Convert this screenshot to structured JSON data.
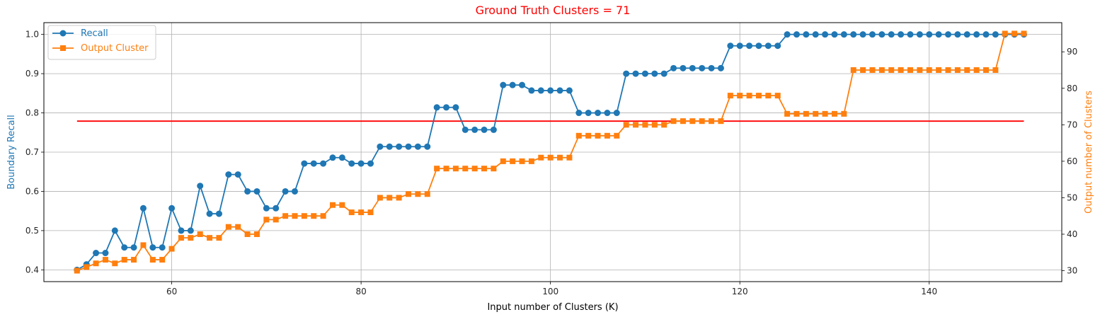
{
  "chart_data": {
    "type": "line",
    "title": "Ground Truth Clusters = 71",
    "title_color": "#ff0000",
    "xlabel": "Input number of Clusters (K)",
    "ylabel_left": "Boundary Recall",
    "ylabel_right": "Output number of Clusters",
    "xlim": [
      46.5,
      154
    ],
    "ylim_left": [
      0.37,
      1.03
    ],
    "ylim_right": [
      27,
      98
    ],
    "xticks": [
      60,
      80,
      100,
      120,
      140
    ],
    "yticks_left": [
      0.4,
      0.5,
      0.6,
      0.7,
      0.8,
      0.9,
      1.0
    ],
    "yticks_right": [
      30,
      40,
      50,
      60,
      70,
      80,
      90
    ],
    "xtick_labels": [
      "60",
      "80",
      "100",
      "120",
      "140"
    ],
    "ytick_left_labels": [
      "0.4",
      "0.5",
      "0.6",
      "0.7",
      "0.8",
      "0.9",
      "1.0"
    ],
    "ytick_right_labels": [
      "30",
      "40",
      "50",
      "60",
      "70",
      "80",
      "90"
    ],
    "grid": true,
    "legend_placement": "top-left",
    "x": [
      50,
      51,
      52,
      53,
      54,
      55,
      56,
      57,
      58,
      59,
      60,
      61,
      62,
      63,
      64,
      65,
      66,
      67,
      68,
      69,
      70,
      71,
      72,
      73,
      74,
      75,
      76,
      77,
      78,
      79,
      80,
      81,
      82,
      83,
      84,
      85,
      86,
      87,
      88,
      89,
      90,
      91,
      92,
      93,
      94,
      95,
      96,
      97,
      98,
      99,
      100,
      101,
      102,
      103,
      104,
      105,
      106,
      107,
      108,
      109,
      110,
      111,
      112,
      113,
      114,
      115,
      116,
      117,
      118,
      119,
      120,
      121,
      122,
      123,
      124,
      125,
      126,
      127,
      128,
      129,
      130,
      131,
      132,
      133,
      134,
      135,
      136,
      137,
      138,
      139,
      140,
      141,
      142,
      143,
      144,
      145,
      146,
      147,
      148,
      149,
      150
    ],
    "series": [
      {
        "name": "Recall",
        "axis": "left",
        "marker": "circle",
        "color": "#1f77b4",
        "values": [
          0.4,
          0.414,
          0.443,
          0.443,
          0.5,
          0.457,
          0.457,
          0.557,
          0.457,
          0.457,
          0.557,
          0.5,
          0.5,
          0.614,
          0.543,
          0.543,
          0.643,
          0.643,
          0.6,
          0.6,
          0.557,
          0.557,
          0.6,
          0.6,
          0.671,
          0.671,
          0.671,
          0.686,
          0.686,
          0.671,
          0.671,
          0.671,
          0.714,
          0.714,
          0.714,
          0.714,
          0.714,
          0.714,
          0.814,
          0.814,
          0.814,
          0.757,
          0.757,
          0.757,
          0.757,
          0.871,
          0.871,
          0.871,
          0.857,
          0.857,
          0.857,
          0.857,
          0.857,
          0.8,
          0.8,
          0.8,
          0.8,
          0.8,
          0.9,
          0.9,
          0.9,
          0.9,
          0.9,
          0.914,
          0.914,
          0.914,
          0.914,
          0.914,
          0.914,
          0.971,
          0.971,
          0.971,
          0.971,
          0.971,
          0.971,
          1.0,
          1.0,
          1.0,
          1.0,
          1.0,
          1.0,
          1.0,
          1.0,
          1.0,
          1.0,
          1.0,
          1.0,
          1.0,
          1.0,
          1.0,
          1.0,
          1.0,
          1.0,
          1.0,
          1.0,
          1.0,
          1.0,
          1.0,
          1.0,
          1.0,
          1.0
        ]
      },
      {
        "name": "Output Cluster",
        "axis": "right",
        "marker": "square",
        "color": "#ff7f0e",
        "values": [
          30,
          31,
          32,
          33,
          32,
          33,
          33,
          37,
          33,
          33,
          36,
          39,
          39,
          40,
          39,
          39,
          42,
          42,
          40,
          40,
          44,
          44,
          45,
          45,
          45,
          45,
          45,
          48,
          48,
          46,
          46,
          46,
          50,
          50,
          50,
          51,
          51,
          51,
          58,
          58,
          58,
          58,
          58,
          58,
          58,
          60,
          60,
          60,
          60,
          61,
          61,
          61,
          61,
          67,
          67,
          67,
          67,
          67,
          70,
          70,
          70,
          70,
          70,
          71,
          71,
          71,
          71,
          71,
          71,
          78,
          78,
          78,
          78,
          78,
          78,
          73,
          73,
          73,
          73,
          73,
          73,
          73,
          85,
          85,
          85,
          85,
          85,
          85,
          85,
          85,
          85,
          85,
          85,
          85,
          85,
          85,
          85,
          85,
          95,
          95,
          95
        ]
      }
    ],
    "reference_line": {
      "axis": "right",
      "y": 71,
      "x_range": [
        50,
        150
      ],
      "color": "#ff0000"
    }
  }
}
